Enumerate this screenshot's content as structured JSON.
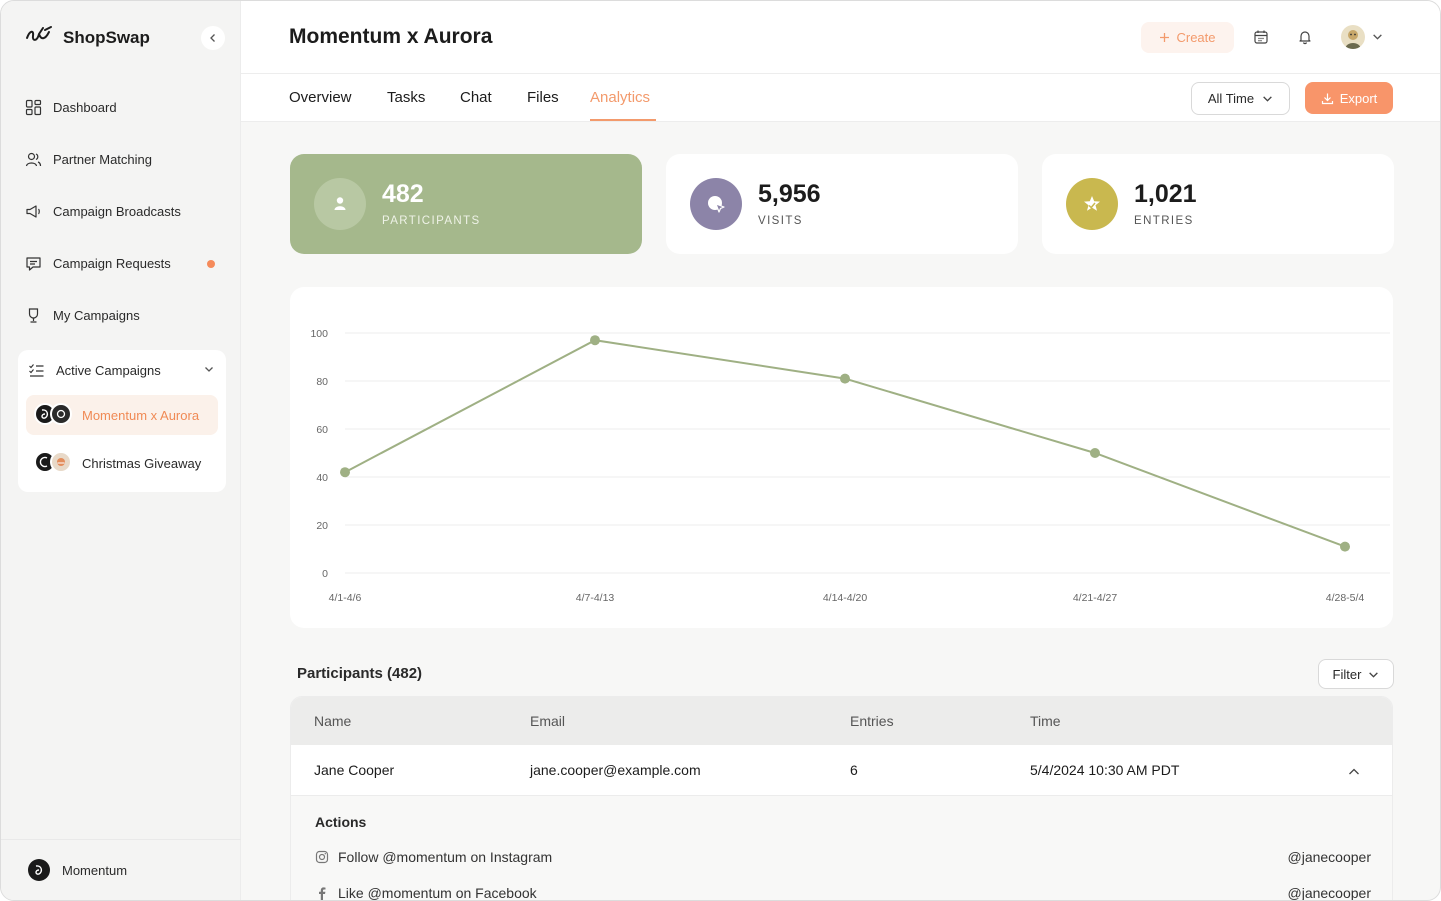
{
  "app": {
    "name": "ShopSwap"
  },
  "sidebar": {
    "items": [
      {
        "label": "Dashboard",
        "icon": "dashboard-icon"
      },
      {
        "label": "Partner Matching",
        "icon": "users-icon"
      },
      {
        "label": "Campaign Broadcasts",
        "icon": "megaphone-icon"
      },
      {
        "label": "Campaign Requests",
        "icon": "message-icon",
        "notification": true
      },
      {
        "label": "My Campaigns",
        "icon": "trophy-icon"
      }
    ],
    "active_campaigns": {
      "label": "Active Campaigns",
      "items": [
        {
          "label": "Momentum x Aurora",
          "selected": true
        },
        {
          "label": "Christmas Giveaway",
          "selected": false
        }
      ]
    },
    "footer_user": "Momentum"
  },
  "header": {
    "title": "Momentum x Aurora",
    "create_label": "Create"
  },
  "tabs": [
    {
      "label": "Overview",
      "active": false
    },
    {
      "label": "Tasks",
      "active": false
    },
    {
      "label": "Chat",
      "active": false
    },
    {
      "label": "Files",
      "active": false
    },
    {
      "label": "Analytics",
      "active": true
    }
  ],
  "toolbar": {
    "time_range": "All Time",
    "export_label": "Export"
  },
  "stats": [
    {
      "value": "482",
      "label": "PARTICIPANTS",
      "color": "#a5b88c"
    },
    {
      "value": "5,956",
      "label": "VISITS",
      "color": "#8c84a8"
    },
    {
      "value": "1,021",
      "label": "ENTRIES",
      "color": "#c9b84f"
    }
  ],
  "chart_data": {
    "type": "line",
    "categories": [
      "4/1-4/6",
      "4/7-4/13",
      "4/14-4/20",
      "4/21-4/27",
      "4/28-5/4"
    ],
    "values": [
      42,
      97,
      81,
      50,
      11
    ],
    "ylim": [
      0,
      100
    ],
    "yticks": [
      0,
      20,
      40,
      60,
      80,
      100
    ],
    "grid": true,
    "color": "#9fb084"
  },
  "participants": {
    "title": "Participants (482)",
    "filter_label": "Filter",
    "columns": [
      "Name",
      "Email",
      "Entries",
      "Time"
    ],
    "rows": [
      {
        "name": "Jane Cooper",
        "email": "jane.cooper@example.com",
        "entries": "6",
        "time": "5/4/2024 10:30 AM PDT"
      }
    ],
    "actions_title": "Actions",
    "actions": [
      {
        "label": "Follow @momentum on Instagram",
        "icon": "instagram-icon",
        "handle": "@janecooper"
      },
      {
        "label": "Like @momentum on Facebook",
        "icon": "facebook-icon",
        "handle": "@janecooper"
      }
    ]
  }
}
